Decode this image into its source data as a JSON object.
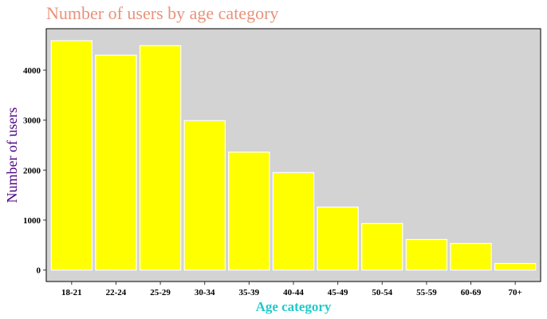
{
  "colors": {
    "title": "#e8937a",
    "panel": "#d3d3d3",
    "bar": "#ffff00",
    "bar_outline": "#ffffff",
    "xlabel": "#20c9c9",
    "ylabel": "#4b0082"
  },
  "chart_data": {
    "type": "bar",
    "title": "Number of users by age category",
    "xlabel": "Age category",
    "ylabel": "Number of users",
    "categories": [
      "18-21",
      "22-24",
      "25-29",
      "30-34",
      "35-39",
      "40-44",
      "45-49",
      "50-54",
      "55-59",
      "60-69",
      "70+"
    ],
    "values": [
      4590,
      4300,
      4490,
      2990,
      2360,
      1950,
      1260,
      930,
      610,
      530,
      130
    ],
    "ylim": [
      -230,
      4830
    ],
    "yticks": [
      0,
      1000,
      2000,
      3000,
      4000
    ],
    "yticklabels": [
      "0",
      "1000",
      "2000",
      "3000",
      "4000"
    ],
    "grid": false,
    "legend": "none"
  }
}
